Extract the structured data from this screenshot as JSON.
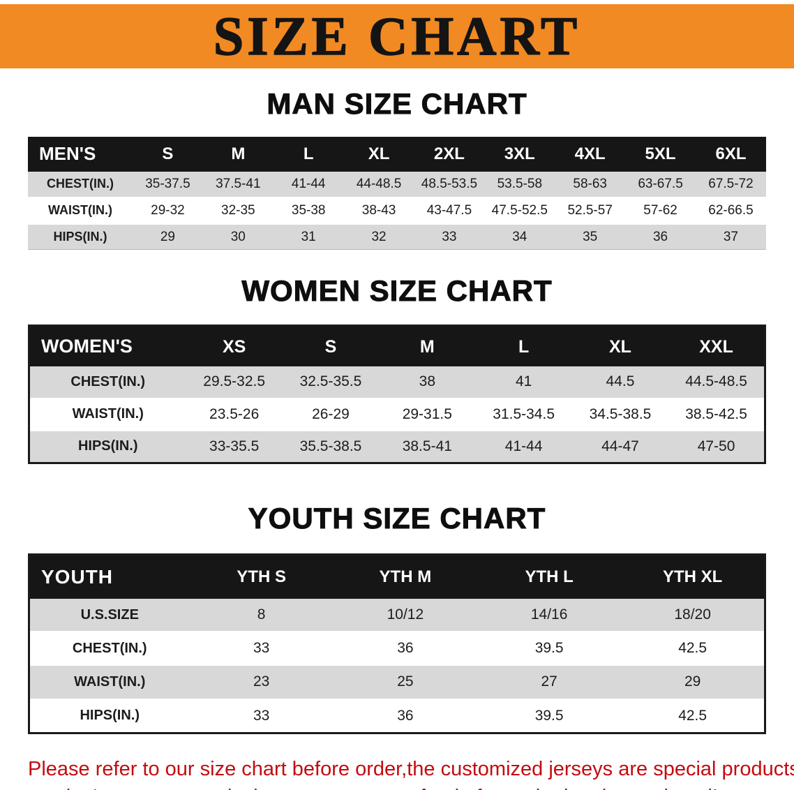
{
  "banner": {
    "title": "SIZE CHART"
  },
  "colors": {
    "banner_bg": "#f18a23",
    "header_bg": "#161616",
    "row_shade": "#d8d8d8",
    "notice_red": "#c40b10"
  },
  "men": {
    "heading": "MAN SIZE CHART",
    "label": "MEN'S",
    "sizes": [
      "S",
      "M",
      "L",
      "XL",
      "2XL",
      "3XL",
      "4XL",
      "5XL",
      "6XL"
    ],
    "rows": [
      {
        "label": "CHEST(IN.)",
        "values": [
          "35-37.5",
          "37.5-41",
          "41-44",
          "44-48.5",
          "48.5-53.5",
          "53.5-58",
          "58-63",
          "63-67.5",
          "67.5-72"
        ]
      },
      {
        "label": "WAIST(IN.)",
        "values": [
          "29-32",
          "32-35",
          "35-38",
          "38-43",
          "43-47.5",
          "47.5-52.5",
          "52.5-57",
          "57-62",
          "62-66.5"
        ]
      },
      {
        "label": "HIPS(IN.)",
        "values": [
          "29",
          "30",
          "31",
          "32",
          "33",
          "34",
          "35",
          "36",
          "37"
        ]
      }
    ]
  },
  "women": {
    "heading": "WOMEN SIZE CHART",
    "label": "WOMEN'S",
    "sizes": [
      "XS",
      "S",
      "M",
      "L",
      "XL",
      "XXL"
    ],
    "rows": [
      {
        "label": "CHEST(IN.)",
        "values": [
          "29.5-32.5",
          "32.5-35.5",
          "38",
          "41",
          "44.5",
          "44.5-48.5"
        ]
      },
      {
        "label": "WAIST(IN.)",
        "values": [
          "23.5-26",
          "26-29",
          "29-31.5",
          "31.5-34.5",
          "34.5-38.5",
          "38.5-42.5"
        ]
      },
      {
        "label": "HIPS(IN.)",
        "values": [
          "33-35.5",
          "35.5-38.5",
          "38.5-41",
          "41-44",
          "44-47",
          "47-50"
        ]
      }
    ]
  },
  "youth": {
    "heading": "YOUTH SIZE CHART",
    "label": "YOUTH",
    "sizes": [
      "YTH S",
      "YTH M",
      "YTH L",
      "YTH XL"
    ],
    "rows": [
      {
        "label": "U.S.SIZE",
        "values": [
          "8",
          "10/12",
          "14/16",
          "18/20"
        ]
      },
      {
        "label": "CHEST(IN.)",
        "values": [
          "33",
          "36",
          "39.5",
          "42.5"
        ]
      },
      {
        "label": "WAIST(IN.)",
        "values": [
          "23",
          "25",
          "27",
          "29"
        ]
      },
      {
        "label": "HIPS(IN.)",
        "values": [
          "33",
          "36",
          "39.5",
          "42.5"
        ]
      }
    ]
  },
  "footer": {
    "line1": "Please refer to our size chart before order,the customized jerseys are special products,",
    "line2": "we don't accept cancel, change, teturn or refund after order has been placed!"
  }
}
